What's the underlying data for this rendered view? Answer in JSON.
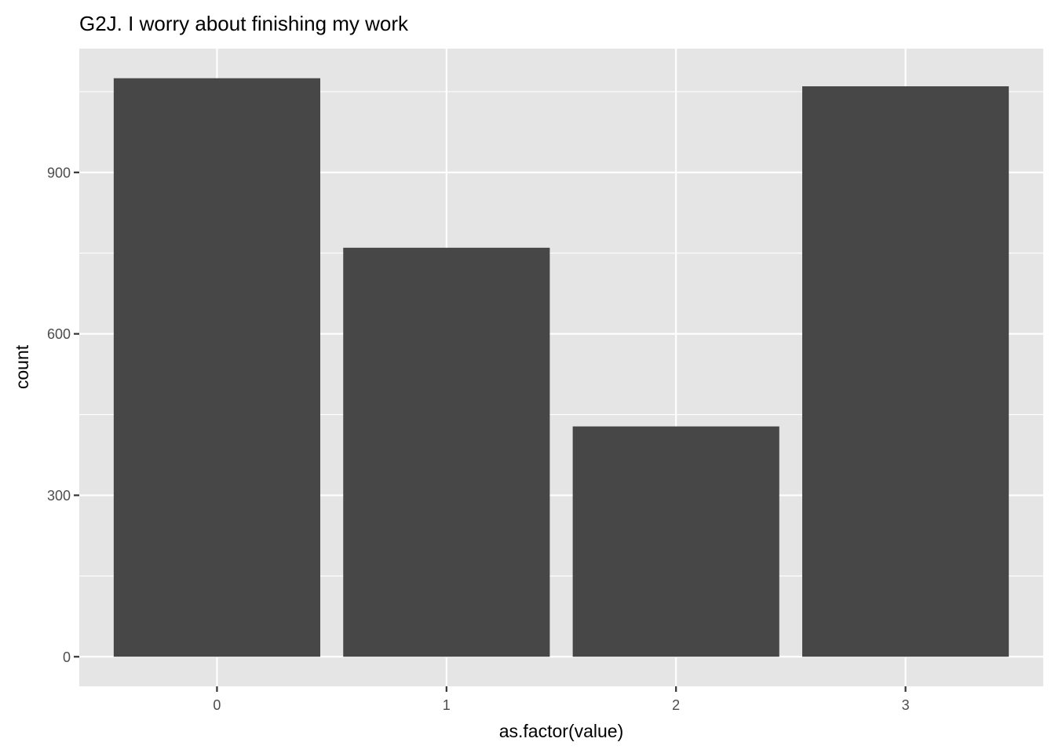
{
  "chart_data": {
    "type": "bar",
    "title": "G2J. I worry about finishing my work",
    "xlabel": "as.factor(value)",
    "ylabel": "count",
    "categories": [
      "0",
      "1",
      "2",
      "3"
    ],
    "values": [
      1075,
      760,
      428,
      1060
    ],
    "ylim": [
      -55,
      1130
    ],
    "yticks": [
      0,
      300,
      600,
      900
    ],
    "grid": true,
    "legend": "none",
    "colors": {
      "bar": "#474747",
      "panel": "#E5E5E5",
      "grid": "#FFFFFF",
      "tick_text": "#4D4D4D",
      "text": "#000000"
    }
  }
}
